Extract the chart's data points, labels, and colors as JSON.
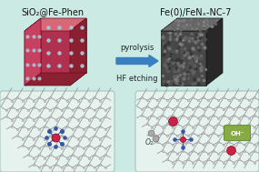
{
  "bg_color": "#cceae4",
  "title_left": "SiO₂@Fe-Phen",
  "title_right": "Fe(0)/FeNₓ-NC-7",
  "arrow_text_top": "pyrolysis",
  "arrow_text_bottom": "HF etching",
  "left_cube_base": "#c84060",
  "left_cube_light": "#d86878",
  "left_cube_dark": "#8b2030",
  "left_cube_inner": "#b03050",
  "right_cube_base": "#484848",
  "right_cube_light": "#686868",
  "right_cube_dark": "#282828",
  "arrow_color": "#3a7fc1",
  "dot_color": "#a8c8d8",
  "font_size_title": 7.0,
  "font_size_arrow": 6.0,
  "node_color_C": "#c8c8c8",
  "node_color_N": "#3355aa",
  "node_color_Fe": "#cc2244",
  "node_color_O": "#aaaaaa",
  "bond_color": "#999999",
  "bond_color_FeN": "#4466cc"
}
